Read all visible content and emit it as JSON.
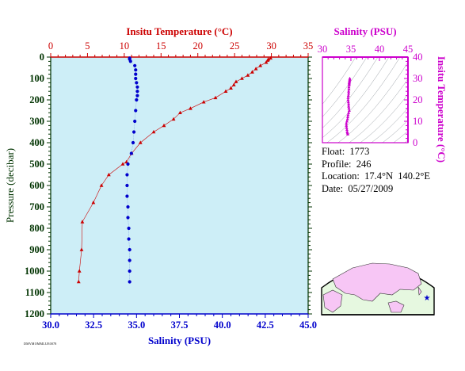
{
  "colors": {
    "temperature": "#cc0000",
    "salinity": "#0000cc",
    "inset": "#cc00cc",
    "axis": "#003300",
    "plot_bg": "#cdeef7"
  },
  "info": {
    "float_label": "Float:",
    "float_value": "1773",
    "profile_label": "Profile:",
    "profile_value": "246",
    "location_label": "Location:",
    "location_value": "17.4°N  140.2°E",
    "date_label": "Date:",
    "date_value": "05/27/2009"
  },
  "footer_tag": "DMVMOMMLUE0078",
  "chart_data": [
    {
      "type": "line",
      "title": "",
      "ylabel": "Pressure (decibar)",
      "ylim": [
        1200,
        0
      ],
      "yticks": [
        0,
        100,
        200,
        300,
        400,
        500,
        600,
        700,
        800,
        900,
        1000,
        1100,
        1200
      ],
      "x_top": {
        "label": "Insitu Temperature (°C)",
        "lim": [
          0,
          35
        ],
        "ticks": [
          0,
          5,
          10,
          15,
          20,
          25,
          30,
          35
        ]
      },
      "x_bottom": {
        "label": "Salinity (PSU)",
        "lim": [
          30.0,
          45.0
        ],
        "ticks": [
          30.0,
          32.5,
          35.0,
          37.5,
          40.0,
          42.5,
          45.0
        ]
      },
      "grid": false,
      "series": [
        {
          "axis": "top",
          "marker": "triangle",
          "points": [
            [
              29.9,
              5
            ],
            [
              29.6,
              10
            ],
            [
              29.5,
              15
            ],
            [
              29.3,
              25
            ],
            [
              28.5,
              40
            ],
            [
              27.9,
              55
            ],
            [
              27.4,
              70
            ],
            [
              26.8,
              85
            ],
            [
              26.0,
              100
            ],
            [
              25.2,
              115
            ],
            [
              24.9,
              130
            ],
            [
              24.5,
              145
            ],
            [
              23.8,
              160
            ],
            [
              22.4,
              190
            ],
            [
              20.8,
              210
            ],
            [
              19.0,
              240
            ],
            [
              17.6,
              260
            ],
            [
              16.7,
              290
            ],
            [
              15.4,
              320
            ],
            [
              14.0,
              350
            ],
            [
              12.2,
              400
            ],
            [
              11.0,
              450
            ],
            [
              10.3,
              490
            ],
            [
              9.8,
              500
            ],
            [
              7.9,
              550
            ],
            [
              6.9,
              600
            ],
            [
              5.8,
              680
            ],
            [
              4.3,
              770
            ],
            [
              4.2,
              900
            ],
            [
              3.9,
              1000
            ],
            [
              3.8,
              1050
            ]
          ]
        },
        {
          "axis": "bottom",
          "marker": "circle",
          "points": [
            [
              34.6,
              5
            ],
            [
              34.6,
              10
            ],
            [
              34.65,
              20
            ],
            [
              34.9,
              40
            ],
            [
              34.95,
              60
            ],
            [
              34.95,
              80
            ],
            [
              34.95,
              100
            ],
            [
              35.0,
              120
            ],
            [
              35.05,
              140
            ],
            [
              35.05,
              160
            ],
            [
              35.05,
              180
            ],
            [
              35.0,
              200
            ],
            [
              34.95,
              250
            ],
            [
              34.9,
              300
            ],
            [
              34.85,
              350
            ],
            [
              34.8,
              400
            ],
            [
              34.7,
              450
            ],
            [
              34.5,
              500
            ],
            [
              34.45,
              550
            ],
            [
              34.45,
              600
            ],
            [
              34.45,
              650
            ],
            [
              34.5,
              700
            ],
            [
              34.5,
              750
            ],
            [
              34.55,
              800
            ],
            [
              34.55,
              850
            ],
            [
              34.6,
              900
            ],
            [
              34.6,
              950
            ],
            [
              34.6,
              1000
            ],
            [
              34.6,
              1050
            ]
          ]
        }
      ]
    },
    {
      "type": "scatter",
      "title": "",
      "xlabel": "Salinity (PSU)",
      "ylabel": "Insitu Temperature (°C)",
      "xlim": [
        30,
        45
      ],
      "ylim": [
        0,
        40
      ],
      "xticks": [
        30,
        35,
        40,
        45
      ],
      "yticks": [
        0,
        10,
        20,
        30,
        40
      ],
      "points": [
        [
          34.8,
          30
        ],
        [
          34.8,
          29.5
        ],
        [
          34.75,
          29
        ],
        [
          34.75,
          28.5
        ],
        [
          34.7,
          28
        ],
        [
          34.7,
          27.5
        ],
        [
          34.7,
          27
        ],
        [
          34.65,
          26
        ],
        [
          34.65,
          25
        ],
        [
          34.6,
          24
        ],
        [
          34.6,
          23
        ],
        [
          34.55,
          22
        ],
        [
          34.5,
          21
        ],
        [
          34.5,
          20
        ],
        [
          34.55,
          19
        ],
        [
          34.6,
          18
        ],
        [
          34.6,
          17
        ],
        [
          34.65,
          16
        ],
        [
          34.7,
          15
        ],
        [
          34.6,
          14
        ],
        [
          34.5,
          13
        ],
        [
          34.45,
          12
        ],
        [
          34.4,
          11
        ],
        [
          34.3,
          10
        ],
        [
          34.2,
          9
        ],
        [
          34.2,
          8
        ],
        [
          34.25,
          7
        ],
        [
          34.3,
          6
        ],
        [
          34.35,
          5
        ],
        [
          34.4,
          4.5
        ],
        [
          34.45,
          4
        ]
      ]
    }
  ]
}
